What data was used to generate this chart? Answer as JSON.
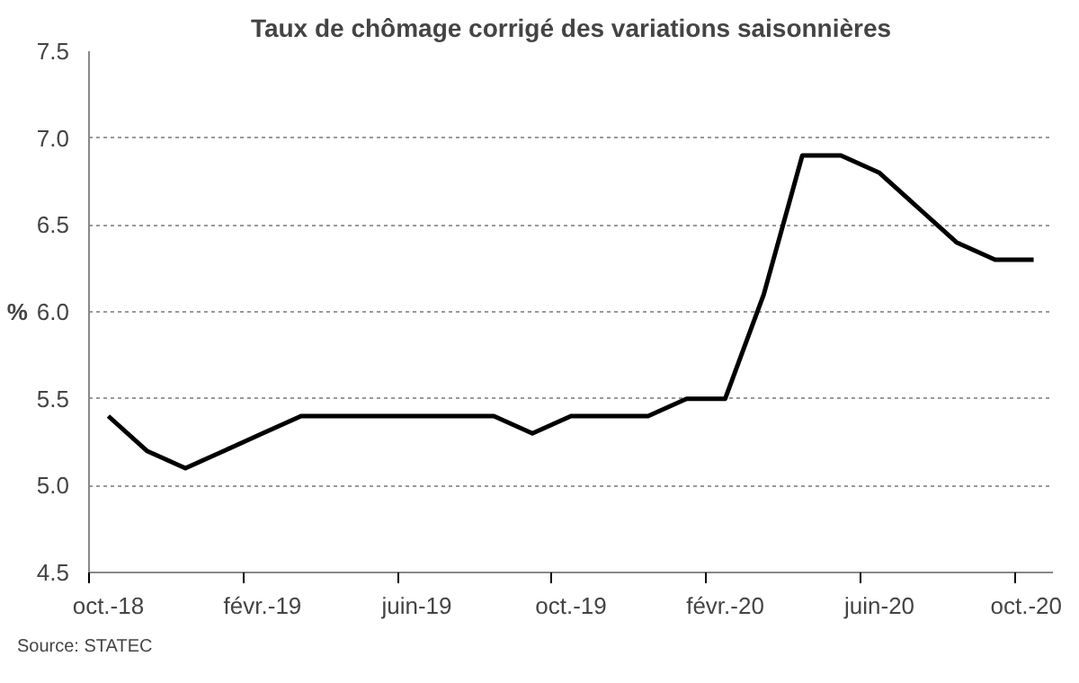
{
  "chart_data": {
    "type": "line",
    "title": "Taux de chômage corrigé des variations saisonnières",
    "ylabel": "%",
    "categories": [
      "oct.-18",
      null,
      null,
      null,
      "févr.-19",
      null,
      null,
      null,
      "juin-19",
      null,
      null,
      null,
      "oct.-19",
      null,
      null,
      null,
      "févr.-20",
      null,
      null,
      null,
      "juin-20",
      null,
      null,
      null,
      "oct.-20"
    ],
    "series": [
      {
        "color": "#000000",
        "values": [
          5.4,
          5.2,
          5.1,
          5.2,
          5.3,
          5.4,
          5.4,
          5.4,
          5.4,
          5.4,
          5.4,
          5.3,
          5.4,
          5.4,
          5.4,
          5.5,
          5.5,
          6.1,
          6.9,
          6.9,
          6.8,
          6.6,
          6.4,
          6.3,
          6.3
        ]
      }
    ],
    "ylim": [
      4.5,
      7.5
    ],
    "yticks": [
      4.5,
      {
        "value": 5,
        "label": "5.0"
      },
      5.5,
      {
        "value": 6,
        "label": "6.0"
      },
      6.5,
      {
        "value": 7,
        "label": "7.0"
      },
      7.5
    ],
    "grid": "y",
    "line_style": "solid",
    "annotations": [
      "Source: STATEC"
    ]
  }
}
